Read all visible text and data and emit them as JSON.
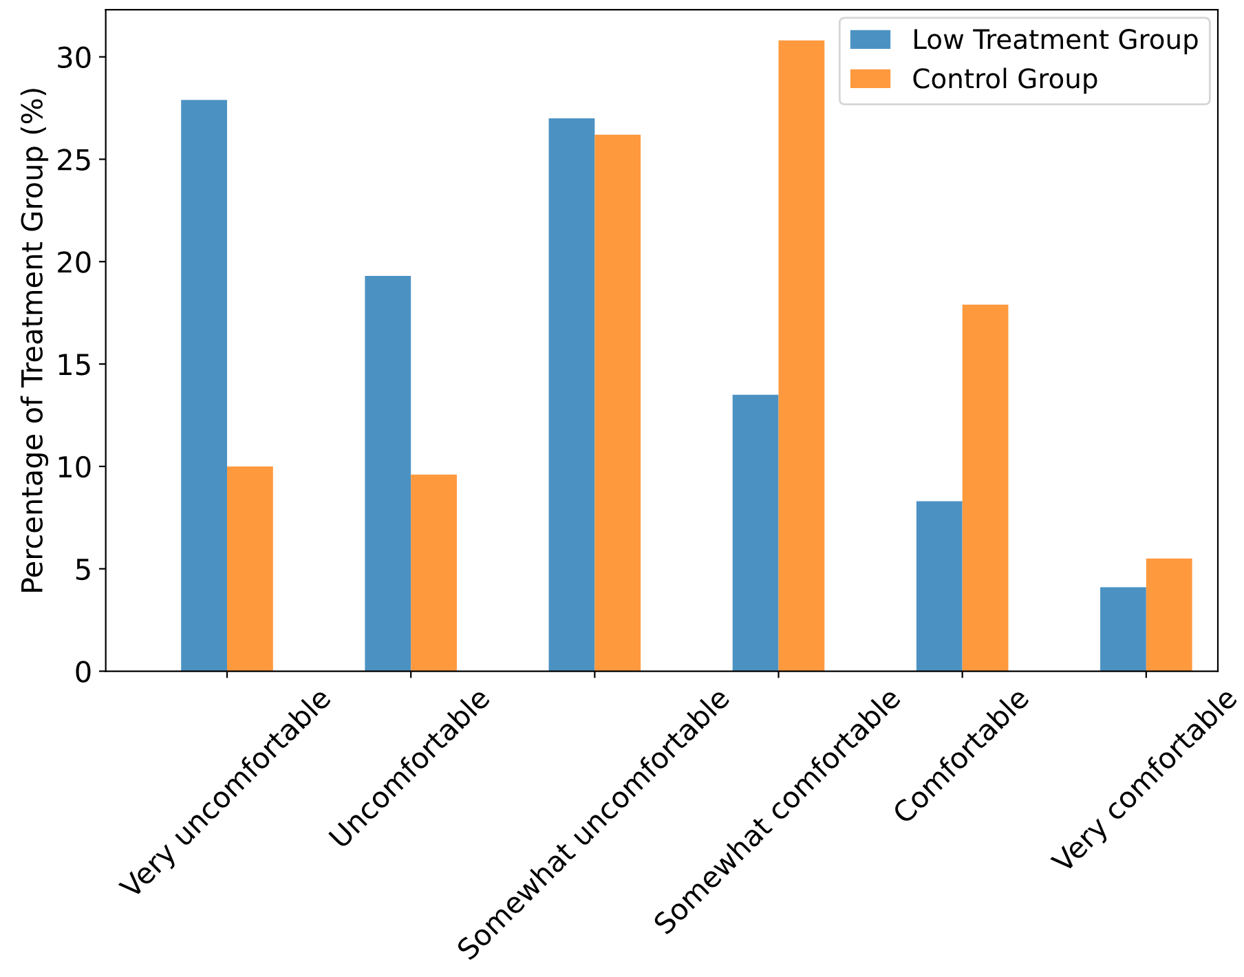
{
  "chart_data": {
    "type": "bar",
    "ylabel": "Percentage of Treatment Group (%)",
    "categories": [
      "Very uncomfortable",
      "Uncomfortable",
      "Somewhat uncomfortable",
      "Somewhat comfortable",
      "Comfortable",
      "Very comfortable"
    ],
    "series": [
      {
        "name": "Low Treatment Group",
        "color": "#4b92c3",
        "values": [
          27.9,
          19.3,
          27.0,
          13.5,
          8.3,
          4.1
        ]
      },
      {
        "name": "Control Group",
        "color": "#ff993e",
        "values": [
          10.0,
          9.6,
          26.2,
          30.8,
          17.9,
          5.5
        ]
      }
    ],
    "ylim": [
      0,
      32.3
    ],
    "yticks": [
      0,
      5,
      10,
      15,
      20,
      25,
      30
    ],
    "legend": "top right",
    "grid": false
  }
}
